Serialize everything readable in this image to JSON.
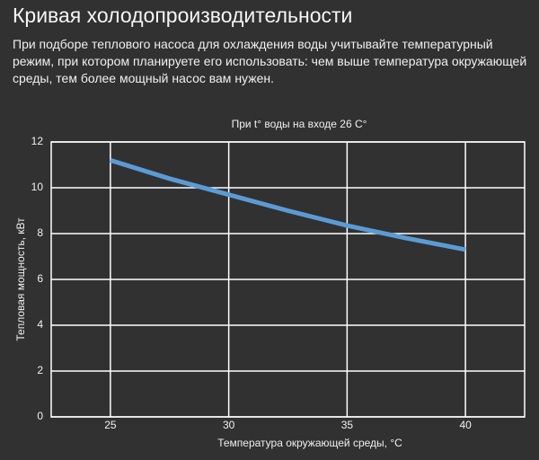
{
  "page": {
    "heading": "Кривая холодопроизводительности",
    "description": "При подборе теплового насоса для охлаждения воды учитывайте температурный режим, при котором планируете его использовать: чем выше температура окружающей среды, тем более мощный насос вам нужен."
  },
  "chart_data": {
    "type": "line",
    "title": "При t° воды на входе 26 C°",
    "xlabel": "Температура окружающей среды, °С",
    "ylabel": "Тепловая мощность, кВт",
    "x": [
      25,
      27.5,
      30,
      32.5,
      35,
      37.5,
      40
    ],
    "series": [
      {
        "name": "При t° воды на входе 26 C°",
        "color": "#5b9bd5",
        "values": [
          11.2,
          10.4,
          9.7,
          9.0,
          8.35,
          7.8,
          7.3
        ]
      }
    ],
    "xlim": [
      22.5,
      42.5
    ],
    "xticks": [
      25,
      30,
      35,
      40
    ],
    "ylim": [
      0,
      12
    ],
    "yticks": [
      0,
      2,
      4,
      6,
      8,
      10,
      12
    ],
    "grid": true
  }
}
